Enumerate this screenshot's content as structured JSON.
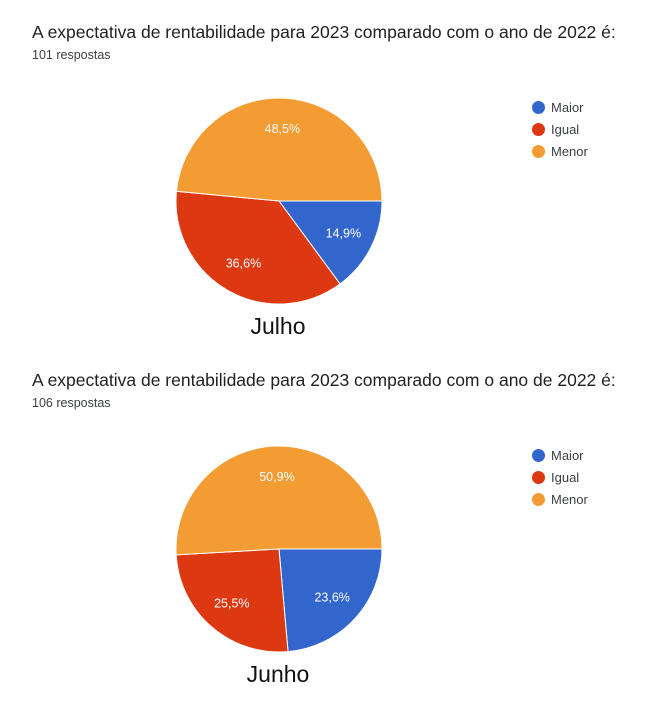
{
  "chart_data": [
    {
      "type": "pie",
      "title": "A expectativa de rentabilidade para 2023 comparado com o ano de 2022 é:",
      "subtitle": "101 respostas",
      "caption": "Julho",
      "legend_position": "top-right",
      "categories": [
        "Maior",
        "Igual",
        "Menor"
      ],
      "values": [
        14.9,
        36.6,
        48.5
      ],
      "value_labels": [
        "14,9%",
        "36,6%",
        "48,5%"
      ],
      "colors": [
        "#3366cc",
        "#dc3912",
        "#f39c33"
      ]
    },
    {
      "type": "pie",
      "title": "A expectativa de rentabilidade para 2023 comparado com o ano de 2022 é:",
      "subtitle": "106 respostas",
      "caption": "Junho",
      "legend_position": "top-right",
      "categories": [
        "Maior",
        "Igual",
        "Menor"
      ],
      "values": [
        23.6,
        25.5,
        50.9
      ],
      "value_labels": [
        "23,6%",
        "25,5%",
        "50,9%"
      ],
      "colors": [
        "#3366cc",
        "#dc3912",
        "#f39c33"
      ]
    }
  ]
}
